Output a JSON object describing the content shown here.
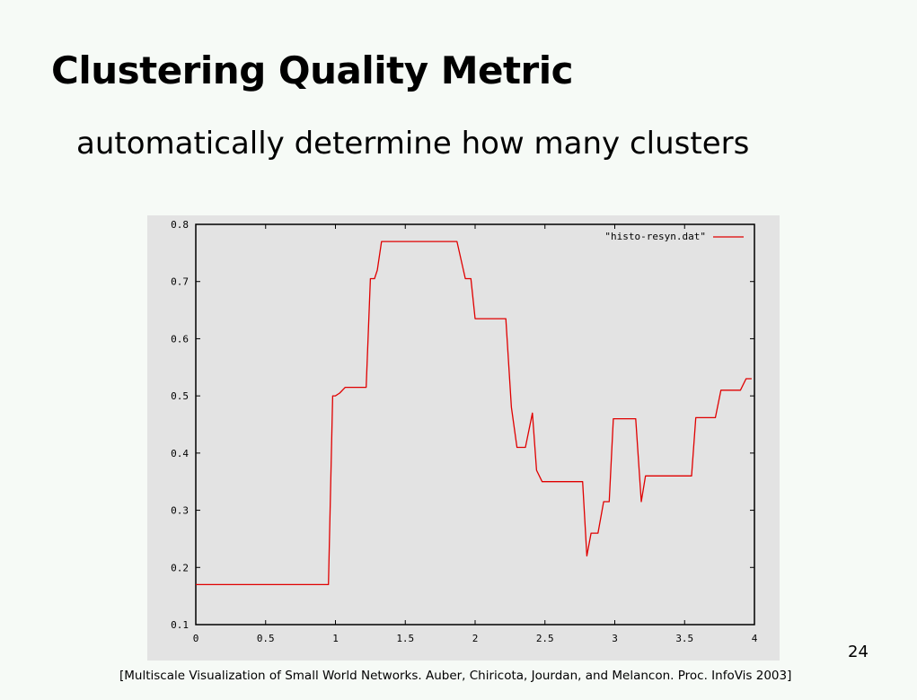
{
  "slide": {
    "title": "Clustering Quality Metric",
    "subtitle": "automatically determine how many clusters",
    "page_number": "24",
    "citation": "[Multiscale Visualization of Small World Networks. Auber, Chiricota, Jourdan, and Melancon. Proc. InfoVis 2003]"
  },
  "chart_data": {
    "type": "line",
    "title": "",
    "xlabel": "",
    "ylabel": "",
    "xlim": [
      0,
      4
    ],
    "ylim": [
      0.1,
      0.8
    ],
    "x_ticks": [
      0,
      0.5,
      1,
      1.5,
      2,
      2.5,
      3,
      3.5,
      4
    ],
    "x_tick_labels": [
      "0",
      "0.5",
      "1",
      "1.5",
      "2",
      "2.5",
      "3",
      "3.5",
      "4"
    ],
    "y_ticks": [
      0.1,
      0.2,
      0.3,
      0.4,
      0.5,
      0.6,
      0.7,
      0.8
    ],
    "y_tick_labels": [
      "0.1",
      "0.2",
      "0.3",
      "0.4",
      "0.5",
      "0.6",
      "0.7",
      "0.8"
    ],
    "grid": false,
    "legend_position": "top-right",
    "series": [
      {
        "name": "\"histo-resyn.dat\"",
        "color": "#e00000",
        "x": [
          0,
          0.95,
          0.98,
          1.0,
          1.03,
          1.07,
          1.1,
          1.22,
          1.25,
          1.28,
          1.3,
          1.33,
          1.37,
          1.5,
          1.7,
          1.87,
          1.93,
          1.97,
          2.0,
          2.1,
          2.22,
          2.26,
          2.3,
          2.36,
          2.41,
          2.44,
          2.48,
          2.52,
          2.6,
          2.7,
          2.77,
          2.8,
          2.83,
          2.88,
          2.92,
          2.96,
          2.99,
          3.02,
          3.08,
          3.15,
          3.19,
          3.22,
          3.3,
          3.4,
          3.55,
          3.58,
          3.65,
          3.72,
          3.76,
          3.9,
          3.94,
          3.98
        ],
        "values": [
          0.17,
          0.17,
          0.5,
          0.5,
          0.505,
          0.515,
          0.515,
          0.515,
          0.705,
          0.705,
          0.72,
          0.77,
          0.77,
          0.77,
          0.77,
          0.77,
          0.705,
          0.705,
          0.635,
          0.635,
          0.635,
          0.48,
          0.41,
          0.41,
          0.47,
          0.37,
          0.35,
          0.35,
          0.35,
          0.35,
          0.35,
          0.22,
          0.26,
          0.26,
          0.315,
          0.315,
          0.46,
          0.46,
          0.46,
          0.46,
          0.315,
          0.36,
          0.36,
          0.36,
          0.36,
          0.462,
          0.462,
          0.462,
          0.51,
          0.51,
          0.53,
          0.53
        ]
      }
    ]
  }
}
